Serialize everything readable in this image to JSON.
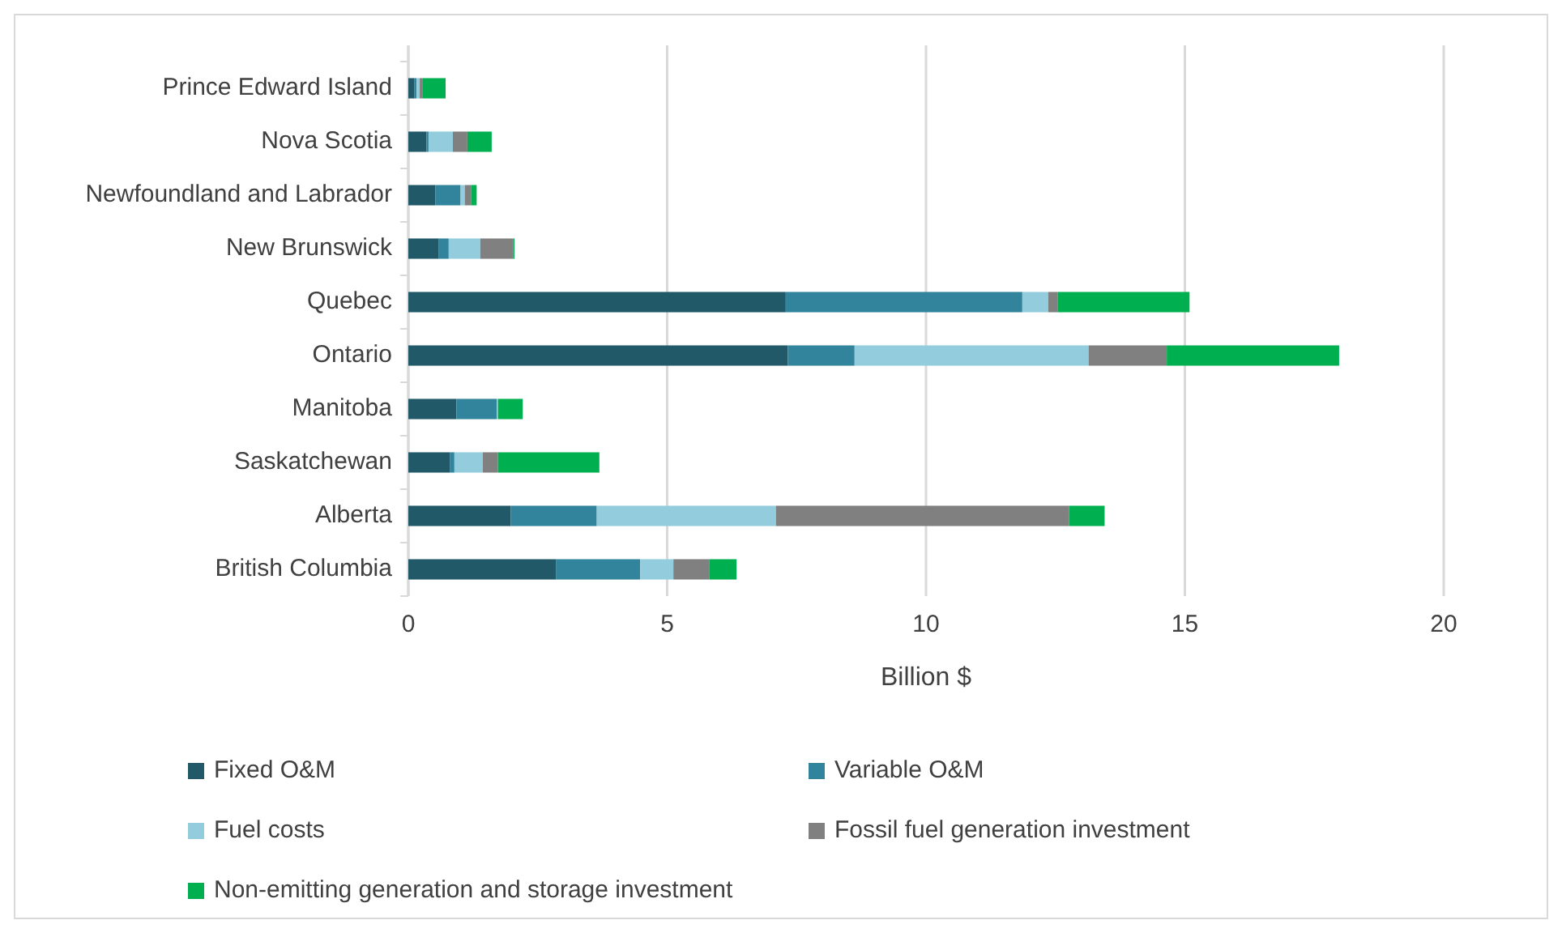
{
  "chart_data": {
    "type": "bar",
    "orientation": "horizontal",
    "stacked": true,
    "xlabel": "Billion $",
    "categories": [
      "Prince Edward Island",
      "Nova Scotia",
      "Newfoundland and Labrador",
      "New Brunswick",
      "Quebec",
      "Ontario",
      "Manitoba",
      "Saskatchewan",
      "Alberta",
      "British Columbia"
    ],
    "series": [
      {
        "name": "Fixed O&M",
        "color": "#215968",
        "values": [
          0.12,
          0.35,
          0.52,
          0.59,
          7.29,
          7.33,
          0.93,
          0.8,
          1.98,
          2.85
        ]
      },
      {
        "name": "Variable O&M",
        "color": "#31849b",
        "values": [
          0.04,
          0.04,
          0.49,
          0.19,
          4.57,
          1.29,
          0.78,
          0.09,
          1.66,
          1.63
        ]
      },
      {
        "name": "Fuel costs",
        "color": "#93cddd",
        "values": [
          0.06,
          0.47,
          0.08,
          0.61,
          0.5,
          4.52,
          0.02,
          0.55,
          3.46,
          0.64
        ]
      },
      {
        "name": "Fossil fuel generation investment",
        "color": "#808080",
        "values": [
          0.06,
          0.28,
          0.12,
          0.64,
          0.18,
          1.51,
          0,
          0.29,
          5.66,
          0.69
        ]
      },
      {
        "name": "Non-emitting generation and storage investment",
        "color": "#00b050",
        "values": [
          0.44,
          0.47,
          0.11,
          0.02,
          2.55,
          3.33,
          0.48,
          1.96,
          0.69,
          0.53
        ]
      }
    ],
    "xlim": [
      0,
      20
    ],
    "xticks": [
      0,
      5,
      10,
      15,
      20
    ],
    "grid": "x",
    "legend": "bottom"
  }
}
